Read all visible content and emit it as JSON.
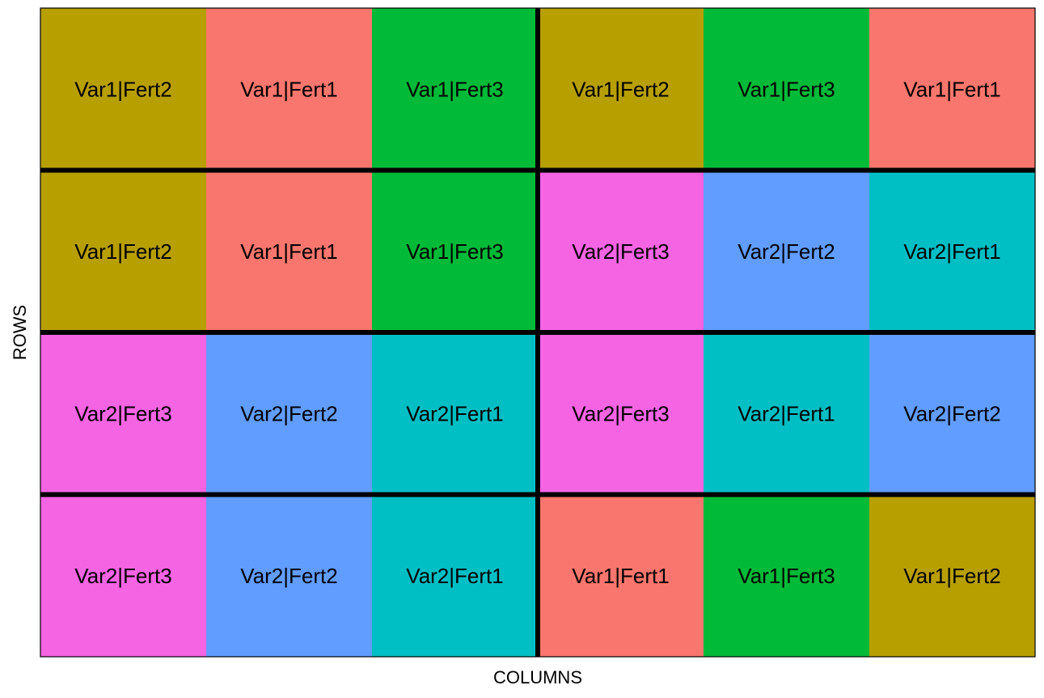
{
  "chart_data": {
    "type": "heatmap",
    "xlabel": "COLUMNS",
    "ylabel": "ROWS",
    "grid": false,
    "legend": "none",
    "n_rows": 4,
    "n_cols": 6,
    "block_divisions": {
      "row_breaks_after": [
        1,
        2,
        3
      ],
      "col_breaks_after": [
        3
      ]
    },
    "colors": {
      "Var1|Fert1": "#F8766D",
      "Var1|Fert2": "#B79F00",
      "Var1|Fert3": "#00BA38",
      "Var2|Fert1": "#00BFC4",
      "Var2|Fert2": "#619CFF",
      "Var2|Fert3": "#F564E3"
    },
    "cells": [
      [
        "Var1|Fert2",
        "Var1|Fert1",
        "Var1|Fert3",
        "Var1|Fert2",
        "Var1|Fert3",
        "Var1|Fert1"
      ],
      [
        "Var1|Fert2",
        "Var1|Fert1",
        "Var1|Fert3",
        "Var2|Fert3",
        "Var2|Fert2",
        "Var2|Fert1"
      ],
      [
        "Var2|Fert3",
        "Var2|Fert2",
        "Var2|Fert1",
        "Var2|Fert3",
        "Var2|Fert1",
        "Var2|Fert2"
      ],
      [
        "Var2|Fert3",
        "Var2|Fert2",
        "Var2|Fert1",
        "Var1|Fert1",
        "Var1|Fert3",
        "Var1|Fert2"
      ]
    ]
  }
}
